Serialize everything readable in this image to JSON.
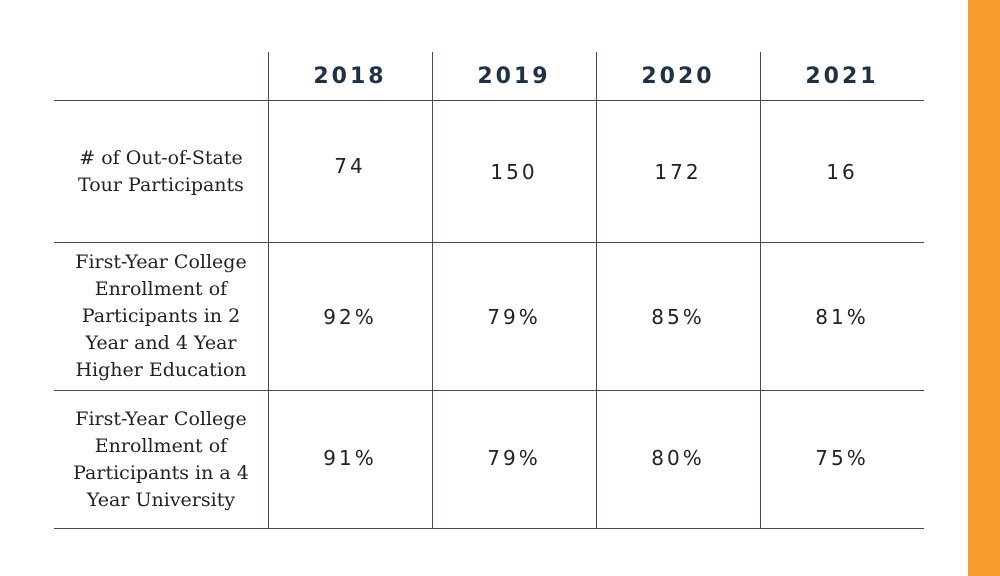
{
  "colors": {
    "accent": "#f79c2e",
    "rule": "#3c4d63",
    "header_text": "#1f3147"
  },
  "chart_data": {
    "type": "table",
    "columns": [
      "2018",
      "2019",
      "2020",
      "2021"
    ],
    "rows": [
      {
        "label": "# of Out-of-State\nTour Participants",
        "values": [
          "74",
          "150",
          "172",
          "16"
        ]
      },
      {
        "label": "First-Year College\nEnrollment of\nParticipants in 2\nYear and 4 Year\nHigher Education",
        "values": [
          "92%",
          "79%",
          "85%",
          "81%"
        ]
      },
      {
        "label": "First-Year College\nEnrollment of\nParticipants in a 4\nYear University",
        "values": [
          "91%",
          "79%",
          "80%",
          "75%"
        ]
      }
    ]
  }
}
